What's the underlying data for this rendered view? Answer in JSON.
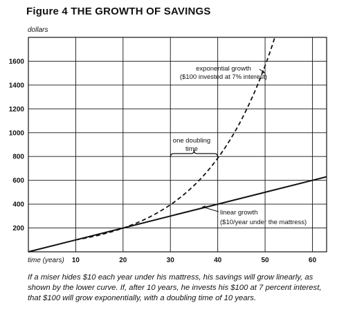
{
  "figure": {
    "title": "Figure 4 THE GROWTH OF SAVINGS",
    "caption": "If a miser hides $10 each year under his mattress, his savings will grow linearly, as shown by the lower curve. If, after 10 years, he invests his $100 at 7 percent interest, that $100 will grow exponentially, with a doubling time of 10 years."
  },
  "chart_data": {
    "type": "line",
    "title": "Figure 4 THE GROWTH OF SAVINGS",
    "ylabel": "dollars",
    "xlabel": "time (years)",
    "xlim": [
      0,
      63
    ],
    "ylim": [
      0,
      1800
    ],
    "x_ticks": [
      10,
      20,
      30,
      40,
      50,
      60
    ],
    "y_ticks": [
      200,
      400,
      600,
      800,
      1000,
      1200,
      1400,
      1600
    ],
    "grid": true,
    "series": [
      {
        "name": "linear growth",
        "style": "solid",
        "x": [
          0,
          10,
          20,
          30,
          40,
          50,
          60,
          63
        ],
        "y": [
          0,
          100,
          200,
          300,
          400,
          500,
          600,
          630
        ]
      },
      {
        "name": "exponential growth",
        "style": "dashed",
        "x": [
          10,
          15,
          20,
          25,
          30,
          35,
          40,
          45,
          50,
          52
        ],
        "y": [
          100,
          141,
          200,
          283,
          400,
          566,
          800,
          1131,
          1600,
          1850
        ]
      }
    ],
    "annotations": [
      {
        "id": "exp",
        "lines": [
          "exponential growth",
          "($100 invested at 7% interest)"
        ]
      },
      {
        "id": "dbl",
        "lines": [
          "one doubling",
          "time"
        ]
      },
      {
        "id": "lin",
        "lines": [
          "linear growth",
          "($10/year under the mattress)"
        ]
      }
    ]
  }
}
